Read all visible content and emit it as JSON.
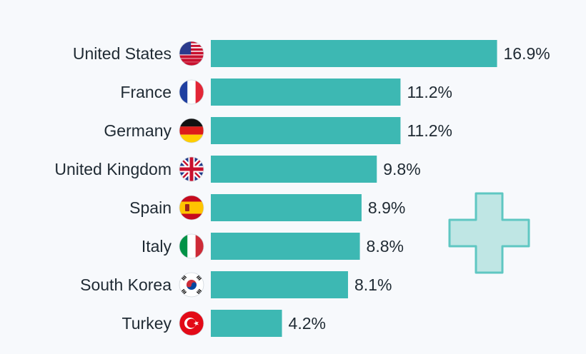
{
  "chart_data": {
    "type": "bar",
    "orientation": "horizontal",
    "categories": [
      "United States",
      "France",
      "Germany",
      "United Kingdom",
      "Spain",
      "Italy",
      "South Korea",
      "Turkey"
    ],
    "values": [
      16.9,
      11.2,
      11.2,
      9.8,
      8.9,
      8.8,
      8.1,
      4.2
    ],
    "value_labels": [
      "16.9%",
      "11.2%",
      "11.2%",
      "9.8%",
      "8.9%",
      "8.8%",
      "8.1%",
      "4.2%"
    ],
    "flags": [
      "us-flag-icon",
      "france-flag-icon",
      "germany-flag-icon",
      "uk-flag-icon",
      "spain-flag-icon",
      "italy-flag-icon",
      "south-korea-flag-icon",
      "turkey-flag-icon"
    ],
    "bar_color": "#3db8b3",
    "grid": false,
    "legend": "none",
    "decoration": "medical-cross-icon"
  }
}
